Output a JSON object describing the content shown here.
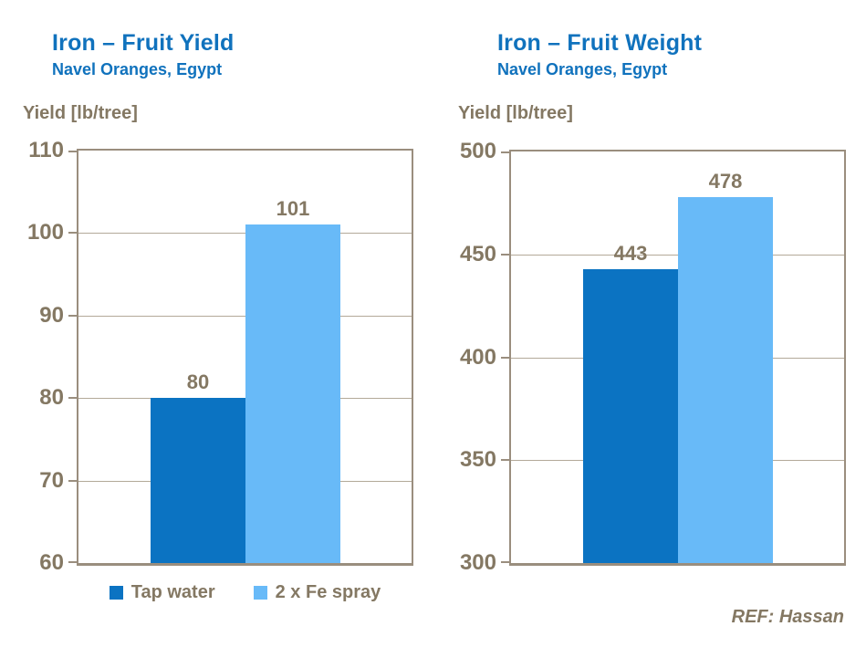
{
  "page": {
    "footer_ref": "REF: Hassan"
  },
  "colors": {
    "title": "#1072bd",
    "text": "#847863",
    "axis_line": "#9a8e7e",
    "gridline": "#b3a999",
    "series": [
      "#0b73c2",
      "#68baf8"
    ]
  },
  "legend": {
    "items": [
      {
        "label": "Tap water",
        "series_index": 0
      },
      {
        "label": "2 x Fe spray",
        "series_index": 1
      }
    ]
  },
  "chart_data": [
    {
      "type": "bar",
      "title": "Iron – Fruit Yield",
      "subtitle": "Navel Oranges, Egypt",
      "ylabel": "Yield [lb/tree]",
      "categories": [
        "Tap water",
        "2 x Fe spray"
      ],
      "values": [
        80,
        101
      ],
      "ylim": [
        60,
        110
      ],
      "ytick_step": 10,
      "grid": true,
      "legend_position": "bottom"
    },
    {
      "type": "bar",
      "title": "Iron – Fruit Weight",
      "subtitle": "Navel Oranges, Egypt",
      "ylabel": "Yield [lb/tree]",
      "categories": [
        "Tap water",
        "2 x Fe spray"
      ],
      "values": [
        443,
        478
      ],
      "ylim": [
        300,
        500
      ],
      "ytick_step": 50,
      "grid": true,
      "legend_position": "none"
    }
  ]
}
